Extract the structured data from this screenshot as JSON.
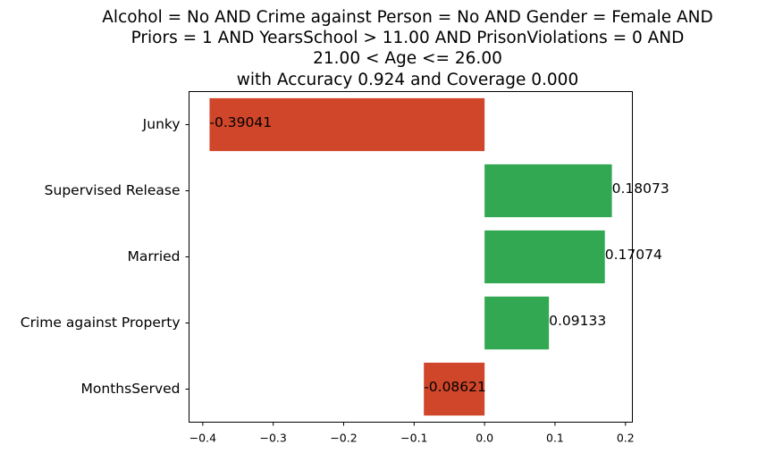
{
  "chart_data": {
    "type": "bar",
    "orientation": "horizontal",
    "title_lines": [
      "Alcohol = No AND Crime against Person = No AND Gender = Female AND",
      "Priors = 1 AND YearsSchool > 11.00 AND PrisonViolations = 0 AND",
      "21.00 < Age <= 26.00",
      "with Accuracy 0.924 and Coverage 0.000"
    ],
    "categories": [
      "Junky",
      "Supervised Release",
      "Married",
      "Crime against Property",
      "MonthsServed"
    ],
    "values": [
      -0.39041,
      0.18073,
      0.17074,
      0.09133,
      -0.08621
    ],
    "value_labels": [
      "-0.39041",
      "0.18073",
      "0.17074",
      "0.09133",
      "-0.08621"
    ],
    "xticks": [
      -0.4,
      -0.3,
      -0.2,
      -0.1,
      0.0,
      0.1,
      0.2
    ],
    "xtick_labels": [
      "−0.4",
      "−0.3",
      "−0.2",
      "−0.1",
      "0.0",
      "0.1",
      "0.2"
    ],
    "xlim": [
      -0.4195,
      0.2098
    ],
    "xlabel": "",
    "ylabel": "",
    "grid": false,
    "colors": {
      "positive": "#33a852",
      "negative": "#d0462a"
    }
  }
}
